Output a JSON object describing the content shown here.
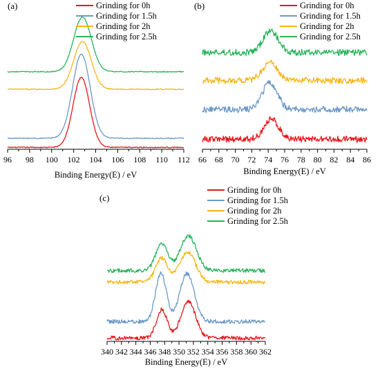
{
  "series_colors": [
    "#e8141a",
    "#6b98c8",
    "#f5b613",
    "#27b35a"
  ],
  "chart_data": [
    {
      "type": "line",
      "panel_label": "(a)",
      "xlabel": "Binding Energy(E) / eV",
      "xlim": [
        96,
        112
      ],
      "xticks": [
        96,
        98,
        100,
        102,
        104,
        106,
        108,
        110,
        112
      ],
      "noise": 0.07,
      "series": [
        {
          "name": "Grinding for 0h",
          "baseline": 0,
          "peaks": [
            {
              "center": 102.7,
              "width": 0.75,
              "height": 10.0
            }
          ]
        },
        {
          "name": "Grinding for 1.5h",
          "baseline": 1.3,
          "peaks": [
            {
              "center": 102.7,
              "width": 0.8,
              "height": 12.0
            }
          ]
        },
        {
          "name": "Grinding for 2h",
          "baseline": 8.3,
          "peaks": [
            {
              "center": 102.8,
              "width": 0.8,
              "height": 6.8
            }
          ]
        },
        {
          "name": "Grinding for 2.5h",
          "baseline": 10.8,
          "peaks": [
            {
              "center": 102.8,
              "width": 0.8,
              "height": 7.8
            }
          ]
        }
      ],
      "legend": "top-right",
      "grid": false
    },
    {
      "type": "line",
      "panel_label": "(b)",
      "xlabel": "Binding Energy(E) / eV",
      "xlim": [
        66,
        86
      ],
      "xticks": [
        66,
        68,
        70,
        72,
        74,
        76,
        78,
        80,
        82,
        84,
        86
      ],
      "noise": 0.35,
      "series": [
        {
          "name": "Grinding for 0h",
          "baseline": 0,
          "peaks": [
            {
              "center": 74.4,
              "width": 0.9,
              "height": 2.2
            }
          ]
        },
        {
          "name": "Grinding for 1.5h",
          "baseline": 3.3,
          "peaks": [
            {
              "center": 74.2,
              "width": 0.9,
              "height": 3.0
            }
          ]
        },
        {
          "name": "Grinding for 2h",
          "baseline": 6.5,
          "peaks": [
            {
              "center": 74.2,
              "width": 0.9,
              "height": 2.0
            }
          ]
        },
        {
          "name": "Grinding for 2.5h",
          "baseline": 9.6,
          "peaks": [
            {
              "center": 74.3,
              "width": 0.9,
              "height": 2.4
            }
          ]
        }
      ],
      "legend": "top-right",
      "grid": false
    },
    {
      "type": "line",
      "panel_label": "(c)",
      "xlabel": "Binding Energy(E) / eV",
      "xlim": [
        340,
        362
      ],
      "xticks": [
        340,
        342,
        344,
        346,
        348,
        350,
        352,
        354,
        356,
        358,
        360,
        362
      ],
      "noise": 0.35,
      "series": [
        {
          "name": "Grinding for 0h",
          "baseline": 0,
          "peaks": [
            {
              "center": 347.6,
              "width": 0.75,
              "height": 5.0
            },
            {
              "center": 351.3,
              "width": 1.0,
              "height": 6.5
            }
          ]
        },
        {
          "name": "Grinding for 1.5h",
          "baseline": 2.9,
          "peaks": [
            {
              "center": 347.5,
              "width": 0.75,
              "height": 8.5
            },
            {
              "center": 351.1,
              "width": 1.0,
              "height": 8.5
            }
          ]
        },
        {
          "name": "Grinding for 2h",
          "baseline": 9.9,
          "peaks": [
            {
              "center": 347.6,
              "width": 0.85,
              "height": 4.2
            },
            {
              "center": 351.2,
              "width": 1.1,
              "height": 5.2
            }
          ]
        },
        {
          "name": "Grinding for 2.5h",
          "baseline": 11.9,
          "peaks": [
            {
              "center": 347.6,
              "width": 0.85,
              "height": 4.8
            },
            {
              "center": 351.3,
              "width": 1.1,
              "height": 6.2
            }
          ]
        }
      ],
      "legend": "top-right",
      "grid": false
    }
  ]
}
